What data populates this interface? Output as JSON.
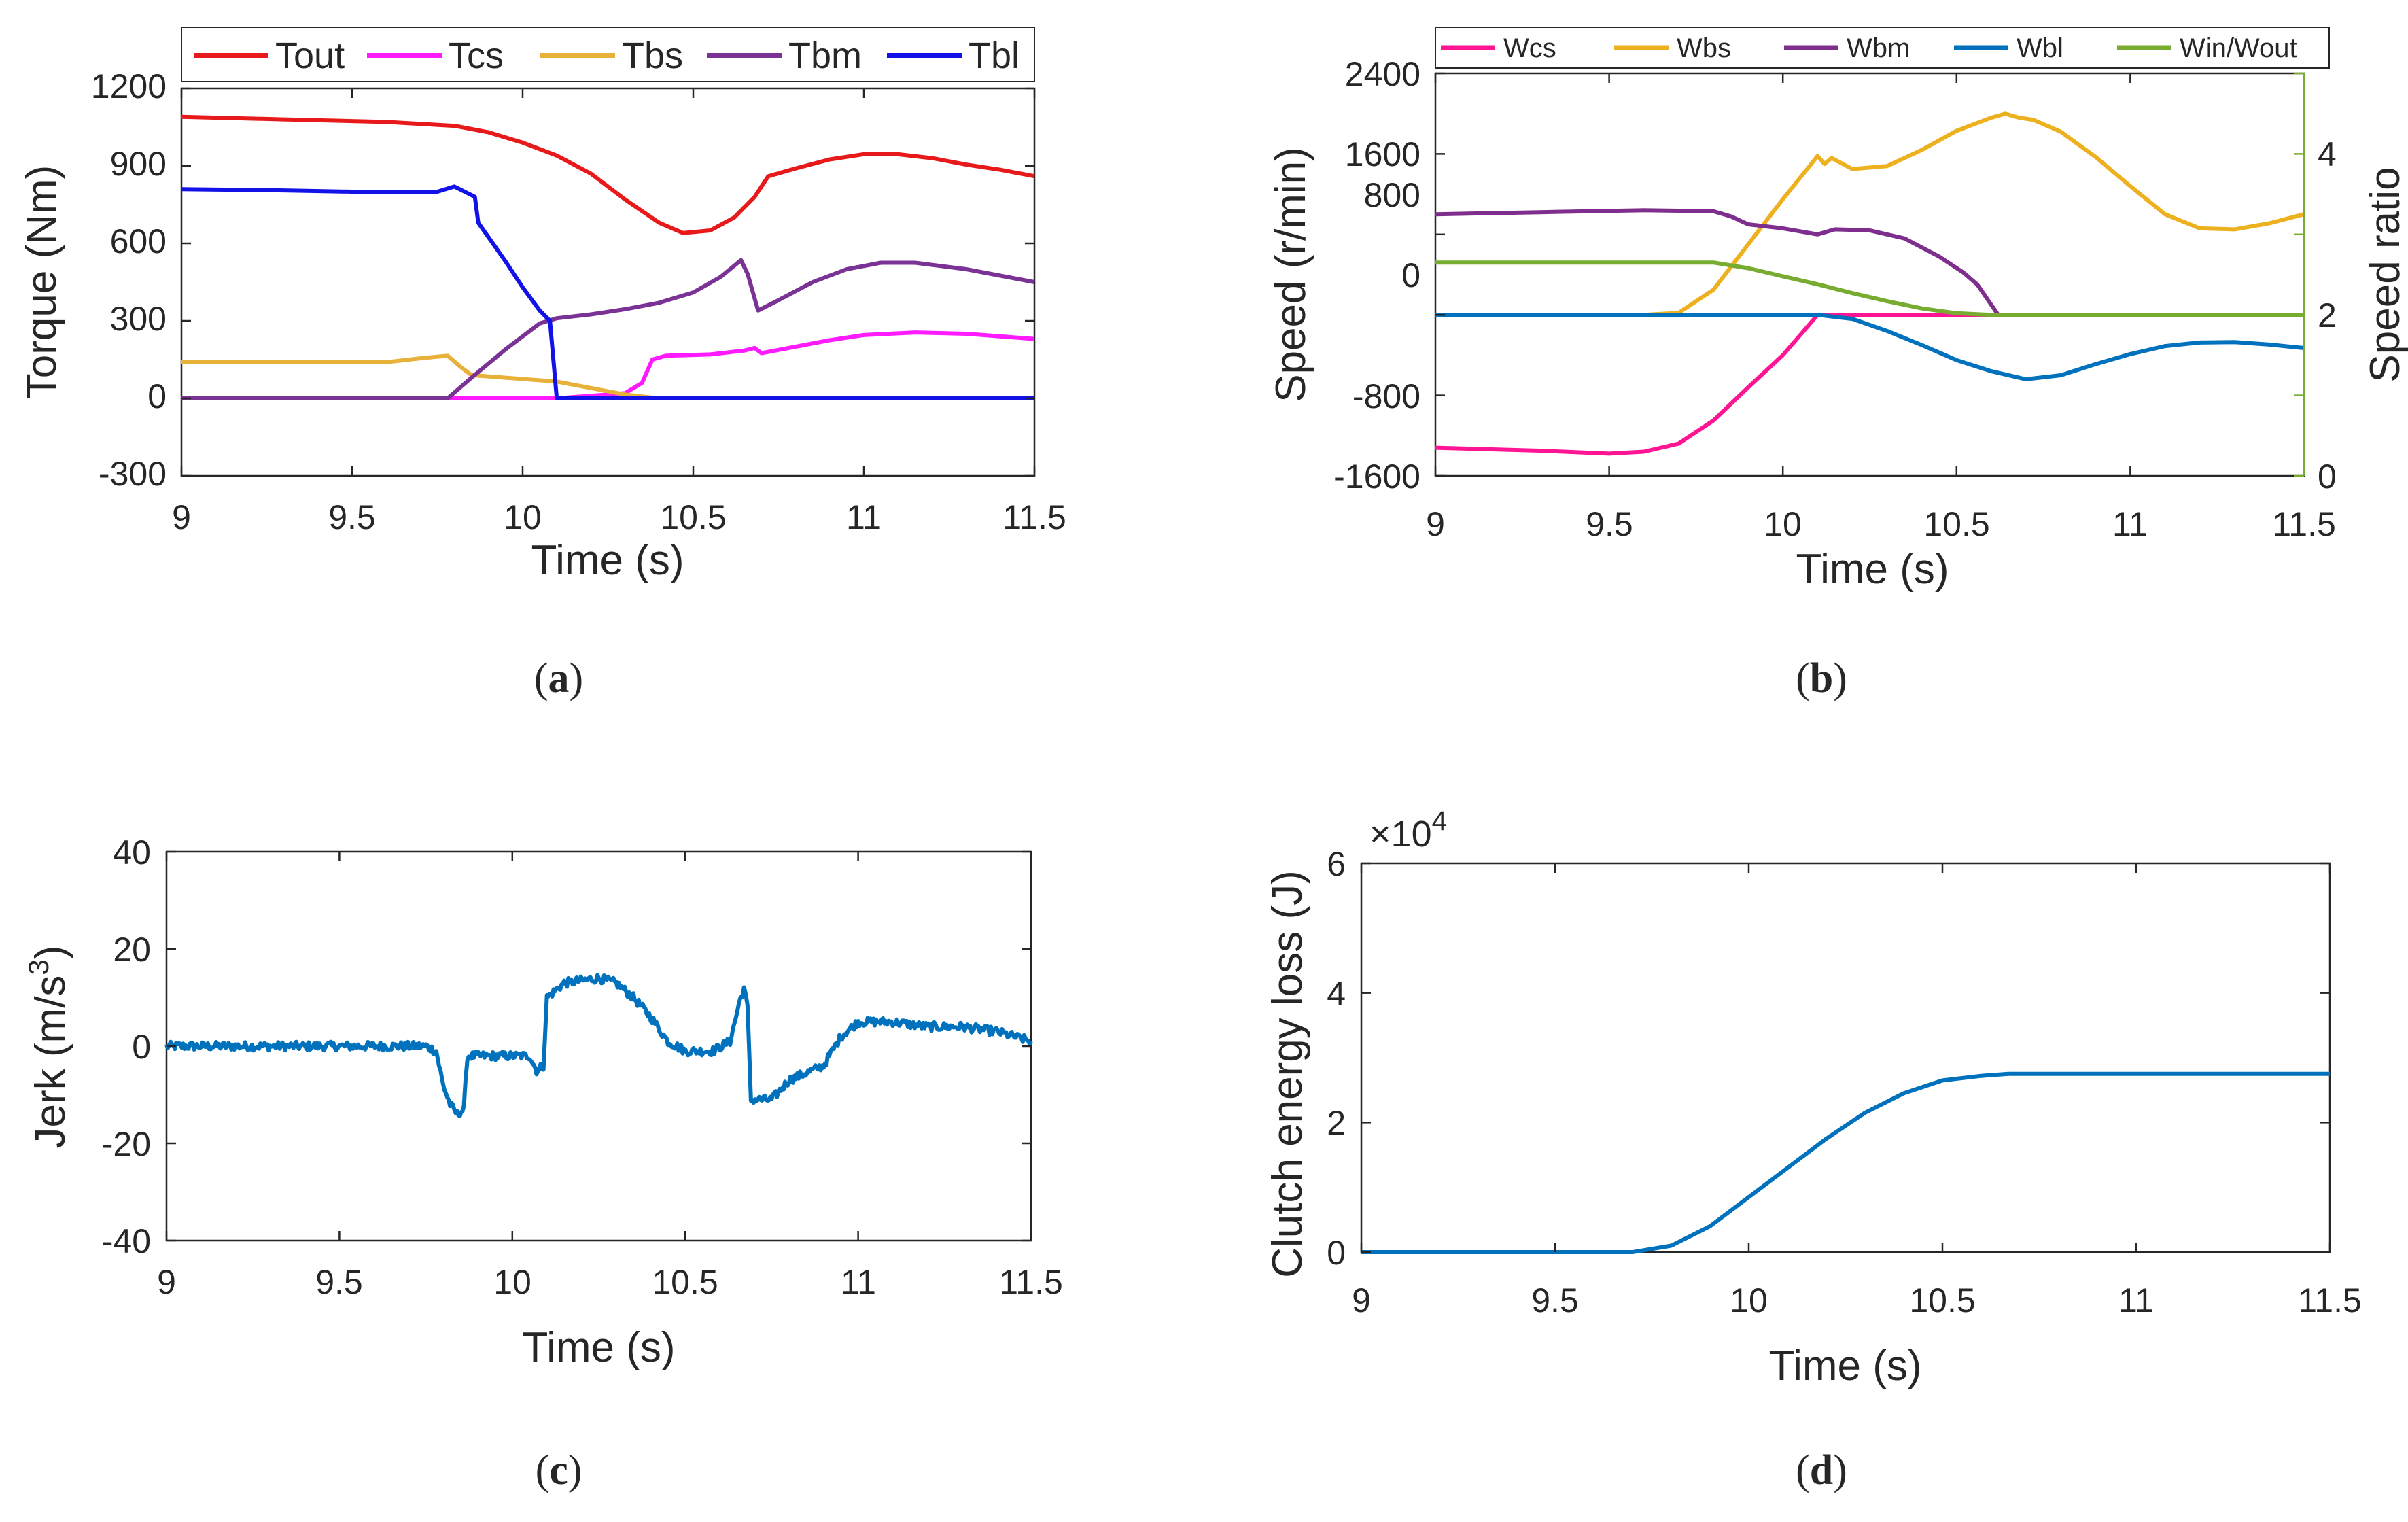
{
  "figure": {
    "captions": [
      {
        "open": "(",
        "letter": "a",
        "close": ")"
      },
      {
        "open": "(",
        "letter": "b",
        "close": ")"
      },
      {
        "open": "(",
        "letter": "c",
        "close": ")"
      },
      {
        "open": "(",
        "letter": "d",
        "close": ")"
      }
    ]
  },
  "colors": {
    "Tout": "#e8191a",
    "Tcs": "#ff1aff",
    "Tbs": "#e8b13a",
    "Tbm": "#7a3394",
    "Tbl": "#1212e8",
    "Wcs": "#ff1493",
    "Wbs": "#edb120",
    "Wbm": "#7e2f8e",
    "Wbl": "#0072bd",
    "ratio": "#77ac30",
    "jerk": "#0072bd",
    "energy": "#0072bd"
  },
  "chart_data": [
    {
      "id": "a",
      "type": "line",
      "title": "",
      "xlabel": "Time (s)",
      "ylabel": "Torque (Nm)",
      "xlim": [
        9,
        11.5
      ],
      "ylim": [
        -300,
        1200
      ],
      "xticks": [
        "9",
        "9.5",
        "10",
        "10.5",
        "11",
        "11.5"
      ],
      "yticks": [
        "-300",
        "0",
        "300",
        "600",
        "900",
        "1200"
      ],
      "legend": "top",
      "series": [
        {
          "name": "Tout",
          "points": [
            [
              9,
              1090
            ],
            [
              9.3,
              1080
            ],
            [
              9.6,
              1070
            ],
            [
              9.8,
              1055
            ],
            [
              9.9,
              1030
            ],
            [
              10.0,
              990
            ],
            [
              10.1,
              940
            ],
            [
              10.2,
              870
            ],
            [
              10.3,
              770
            ],
            [
              10.4,
              680
            ],
            [
              10.47,
              640
            ],
            [
              10.55,
              650
            ],
            [
              10.62,
              700
            ],
            [
              10.68,
              780
            ],
            [
              10.72,
              860
            ],
            [
              10.8,
              890
            ],
            [
              10.9,
              925
            ],
            [
              11.0,
              945
            ],
            [
              11.1,
              945
            ],
            [
              11.2,
              930
            ],
            [
              11.3,
              905
            ],
            [
              11.4,
              885
            ],
            [
              11.5,
              860
            ]
          ]
        },
        {
          "name": "Tcs",
          "points": [
            [
              9,
              0
            ],
            [
              10.1,
              0
            ],
            [
              10.3,
              20
            ],
            [
              10.35,
              60
            ],
            [
              10.38,
              150
            ],
            [
              10.42,
              165
            ],
            [
              10.55,
              170
            ],
            [
              10.65,
              185
            ],
            [
              10.68,
              195
            ],
            [
              10.7,
              175
            ],
            [
              10.8,
              200
            ],
            [
              10.9,
              225
            ],
            [
              11.0,
              245
            ],
            [
              11.15,
              255
            ],
            [
              11.3,
              250
            ],
            [
              11.5,
              230
            ]
          ]
        },
        {
          "name": "Tbs",
          "points": [
            [
              9,
              140
            ],
            [
              9.6,
              140
            ],
            [
              9.7,
              155
            ],
            [
              9.78,
              165
            ],
            [
              9.82,
              120
            ],
            [
              9.85,
              90
            ],
            [
              9.95,
              80
            ],
            [
              10.1,
              65
            ],
            [
              10.2,
              40
            ],
            [
              10.3,
              15
            ],
            [
              10.4,
              0
            ],
            [
              11.5,
              0
            ]
          ]
        },
        {
          "name": "Tbm",
          "points": [
            [
              9,
              0
            ],
            [
              9.78,
              0
            ],
            [
              9.85,
              80
            ],
            [
              9.95,
              190
            ],
            [
              10.05,
              290
            ],
            [
              10.1,
              310
            ],
            [
              10.2,
              325
            ],
            [
              10.3,
              345
            ],
            [
              10.4,
              370
            ],
            [
              10.5,
              410
            ],
            [
              10.58,
              470
            ],
            [
              10.64,
              535
            ],
            [
              10.66,
              480
            ],
            [
              10.69,
              340
            ],
            [
              10.75,
              380
            ],
            [
              10.85,
              450
            ],
            [
              10.95,
              500
            ],
            [
              11.05,
              525
            ],
            [
              11.15,
              525
            ],
            [
              11.3,
              500
            ],
            [
              11.5,
              450
            ]
          ]
        },
        {
          "name": "Tbl",
          "points": [
            [
              9,
              810
            ],
            [
              9.3,
              805
            ],
            [
              9.5,
              800
            ],
            [
              9.75,
              800
            ],
            [
              9.8,
              820
            ],
            [
              9.83,
              800
            ],
            [
              9.86,
              780
            ],
            [
              9.87,
              680
            ],
            [
              9.95,
              530
            ],
            [
              10.0,
              430
            ],
            [
              10.05,
              340
            ],
            [
              10.08,
              300
            ],
            [
              10.1,
              0
            ],
            [
              11.5,
              0
            ]
          ]
        }
      ]
    },
    {
      "id": "b",
      "type": "line",
      "title": "",
      "xlabel": "Time (s)",
      "ylabel": "Speed (r/min)",
      "y2label": "Speed ratio",
      "xlim": [
        9,
        11.5
      ],
      "ylim": [
        -1600,
        2400
      ],
      "y2lim": [
        0,
        5
      ],
      "xticks": [
        "9",
        "9.5",
        "10",
        "10.5",
        "11",
        "11.5"
      ],
      "yticks": [
        "-1600",
        "-800",
        "0",
        "800",
        "1600",
        "2400"
      ],
      "y2ticks": [
        "0",
        "2",
        "4"
      ],
      "legend": "top",
      "series": [
        {
          "name": "Wcs",
          "axis": "left",
          "points": [
            [
              9,
              -1320
            ],
            [
              9.3,
              -1350
            ],
            [
              9.5,
              -1380
            ],
            [
              9.6,
              -1360
            ],
            [
              9.7,
              -1280
            ],
            [
              9.8,
              -1050
            ],
            [
              9.9,
              -720
            ],
            [
              10.0,
              -400
            ],
            [
              10.05,
              -200
            ],
            [
              10.1,
              0
            ],
            [
              11.5,
              0
            ]
          ]
        },
        {
          "name": "Wbs",
          "axis": "left",
          "points": [
            [
              9,
              0
            ],
            [
              9.6,
              0
            ],
            [
              9.7,
              20
            ],
            [
              9.8,
              250
            ],
            [
              9.9,
              700
            ],
            [
              10.0,
              1150
            ],
            [
              10.07,
              1450
            ],
            [
              10.1,
              1580
            ],
            [
              10.12,
              1500
            ],
            [
              10.14,
              1560
            ],
            [
              10.2,
              1450
            ],
            [
              10.3,
              1480
            ],
            [
              10.4,
              1640
            ],
            [
              10.5,
              1830
            ],
            [
              10.6,
              1960
            ],
            [
              10.64,
              2000
            ],
            [
              10.68,
              1960
            ],
            [
              10.72,
              1940
            ],
            [
              10.8,
              1820
            ],
            [
              10.9,
              1570
            ],
            [
              11.0,
              1280
            ],
            [
              11.1,
              1000
            ],
            [
              11.2,
              860
            ],
            [
              11.3,
              850
            ],
            [
              11.4,
              910
            ],
            [
              11.5,
              1000
            ]
          ]
        },
        {
          "name": "Wbm",
          "axis": "left",
          "points": [
            [
              9,
              1000
            ],
            [
              9.3,
              1020
            ],
            [
              9.6,
              1040
            ],
            [
              9.8,
              1030
            ],
            [
              9.85,
              980
            ],
            [
              9.9,
              900
            ],
            [
              10.0,
              860
            ],
            [
              10.1,
              800
            ],
            [
              10.15,
              850
            ],
            [
              10.25,
              840
            ],
            [
              10.35,
              760
            ],
            [
              10.45,
              580
            ],
            [
              10.52,
              420
            ],
            [
              10.56,
              300
            ],
            [
              10.6,
              100
            ],
            [
              10.62,
              0
            ],
            [
              11.5,
              0
            ]
          ]
        },
        {
          "name": "Wbl",
          "axis": "left",
          "points": [
            [
              9,
              0
            ],
            [
              10.1,
              0
            ],
            [
              10.2,
              -40
            ],
            [
              10.3,
              -160
            ],
            [
              10.4,
              -300
            ],
            [
              10.5,
              -450
            ],
            [
              10.6,
              -560
            ],
            [
              10.7,
              -640
            ],
            [
              10.8,
              -600
            ],
            [
              10.9,
              -490
            ],
            [
              11.0,
              -390
            ],
            [
              11.1,
              -310
            ],
            [
              11.2,
              -275
            ],
            [
              11.3,
              -270
            ],
            [
              11.4,
              -295
            ],
            [
              11.5,
              -330
            ]
          ]
        },
        {
          "name": "Win/Wout",
          "axis": "right",
          "points": [
            [
              9,
              2.65
            ],
            [
              9.8,
              2.65
            ],
            [
              9.9,
              2.58
            ],
            [
              10.0,
              2.48
            ],
            [
              10.1,
              2.38
            ],
            [
              10.2,
              2.27
            ],
            [
              10.3,
              2.17
            ],
            [
              10.4,
              2.08
            ],
            [
              10.5,
              2.02
            ],
            [
              10.6,
              2.0
            ],
            [
              11.5,
              2.0
            ]
          ]
        }
      ]
    },
    {
      "id": "c",
      "type": "line",
      "title": "",
      "xlabel": "Time (s)",
      "ylabel": "Jerk (m/s",
      "ylabel_sup": "3",
      "ylabel_end": ")",
      "xlim": [
        9,
        11.5
      ],
      "ylim": [
        -40,
        40
      ],
      "xticks": [
        "9",
        "9.5",
        "10",
        "10.5",
        "11",
        "11.5"
      ],
      "yticks": [
        "-40",
        "-20",
        "0",
        "20",
        "40"
      ],
      "series": [
        {
          "name": "Jerk",
          "noise": 0.9,
          "points": [
            [
              9,
              0
            ],
            [
              9.75,
              0
            ],
            [
              9.78,
              -1
            ],
            [
              9.8,
              -8
            ],
            [
              9.82,
              -12
            ],
            [
              9.84,
              -14
            ],
            [
              9.86,
              -13
            ],
            [
              9.87,
              -2
            ],
            [
              9.9,
              -2
            ],
            [
              10.05,
              -2
            ],
            [
              10.07,
              -5
            ],
            [
              10.09,
              -4
            ],
            [
              10.1,
              10
            ],
            [
              10.15,
              13
            ],
            [
              10.25,
              14
            ],
            [
              10.3,
              13
            ],
            [
              10.35,
              10
            ],
            [
              10.4,
              6
            ],
            [
              10.45,
              1
            ],
            [
              10.5,
              -1
            ],
            [
              10.58,
              -1
            ],
            [
              10.63,
              1
            ],
            [
              10.66,
              10
            ],
            [
              10.67,
              12
            ],
            [
              10.68,
              8
            ],
            [
              10.69,
              -11
            ],
            [
              10.75,
              -11
            ],
            [
              10.8,
              -7
            ],
            [
              10.9,
              -4
            ],
            [
              10.95,
              2
            ],
            [
              11.0,
              5
            ],
            [
              11.1,
              5
            ],
            [
              11.2,
              4
            ],
            [
              11.3,
              4
            ],
            [
              11.4,
              3
            ],
            [
              11.5,
              1
            ]
          ]
        }
      ]
    },
    {
      "id": "d",
      "type": "line",
      "title": "",
      "xlabel": "Time (s)",
      "ylabel": "Clutch energy loss (J)",
      "exponent_label": "×10",
      "exponent_sup": "4",
      "xlim": [
        9,
        11.5
      ],
      "ylim": [
        0,
        6
      ],
      "xticks": [
        "9",
        "9.5",
        "10",
        "10.5",
        "11",
        "11.5"
      ],
      "yticks": [
        "0",
        "2",
        "4",
        "6"
      ],
      "series": [
        {
          "name": "Energy",
          "points": [
            [
              9,
              0
            ],
            [
              9.7,
              0
            ],
            [
              9.8,
              0.1
            ],
            [
              9.9,
              0.4
            ],
            [
              10.0,
              0.85
            ],
            [
              10.1,
              1.3
            ],
            [
              10.2,
              1.75
            ],
            [
              10.3,
              2.15
            ],
            [
              10.4,
              2.45
            ],
            [
              10.5,
              2.65
            ],
            [
              10.6,
              2.72
            ],
            [
              10.67,
              2.75
            ],
            [
              11.5,
              2.75
            ]
          ]
        }
      ]
    }
  ]
}
